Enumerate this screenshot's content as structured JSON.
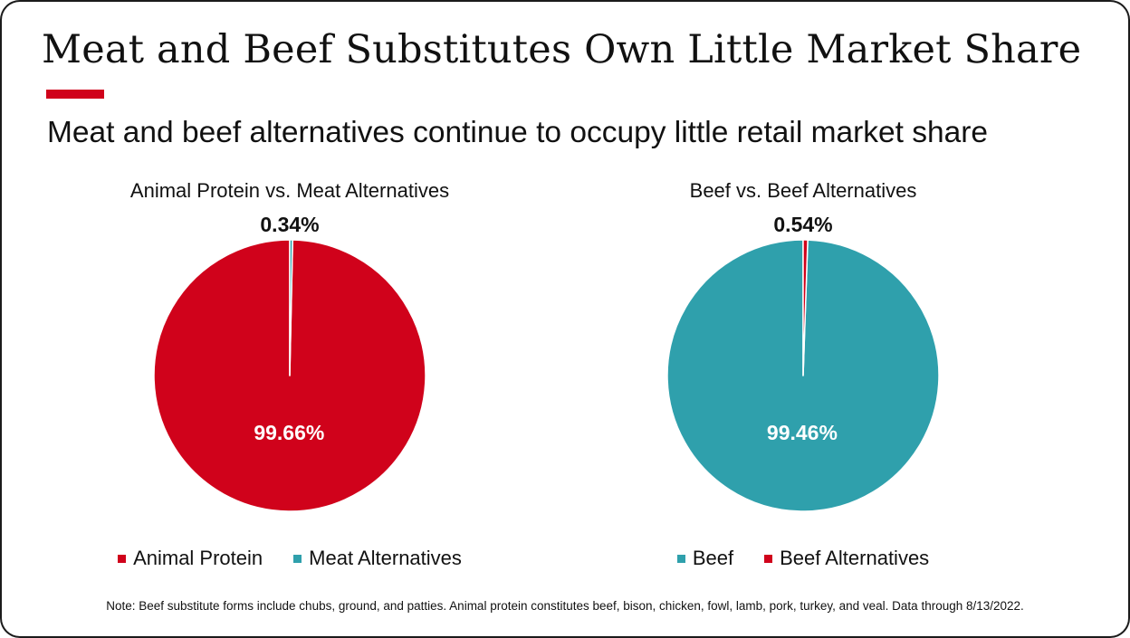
{
  "title": "Meat and Beef Substitutes Own Little Market Share",
  "subtitle": "Meat and beef alternatives continue to occupy little retail market share",
  "footnote": "Note: Beef substitute forms include chubs, ground, and patties. Animal protein constitutes beef, bison, chicken, fowl, lamb, pork, turkey, and veal. Data through 8/13/2022.",
  "colors": {
    "accent": "#D0021B",
    "teal": "#2FA0AC",
    "crimson": "#D0021B"
  },
  "chart_data": [
    {
      "type": "pie",
      "title": "Animal Protein vs. Meat Alternatives",
      "slices": [
        {
          "name": "Animal Protein",
          "value": 99.66,
          "label": "99.66%",
          "color": "#D0021B"
        },
        {
          "name": "Meat Alternatives",
          "value": 0.34,
          "label": "0.34%",
          "color": "#2FA0AC"
        }
      ],
      "legend_position": "bottom"
    },
    {
      "type": "pie",
      "title": "Beef vs. Beef Alternatives",
      "slices": [
        {
          "name": "Beef",
          "value": 99.46,
          "label": "99.46%",
          "color": "#2FA0AC"
        },
        {
          "name": "Beef Alternatives",
          "value": 0.54,
          "label": "0.54%",
          "color": "#D0021B"
        }
      ],
      "legend_position": "bottom"
    }
  ]
}
